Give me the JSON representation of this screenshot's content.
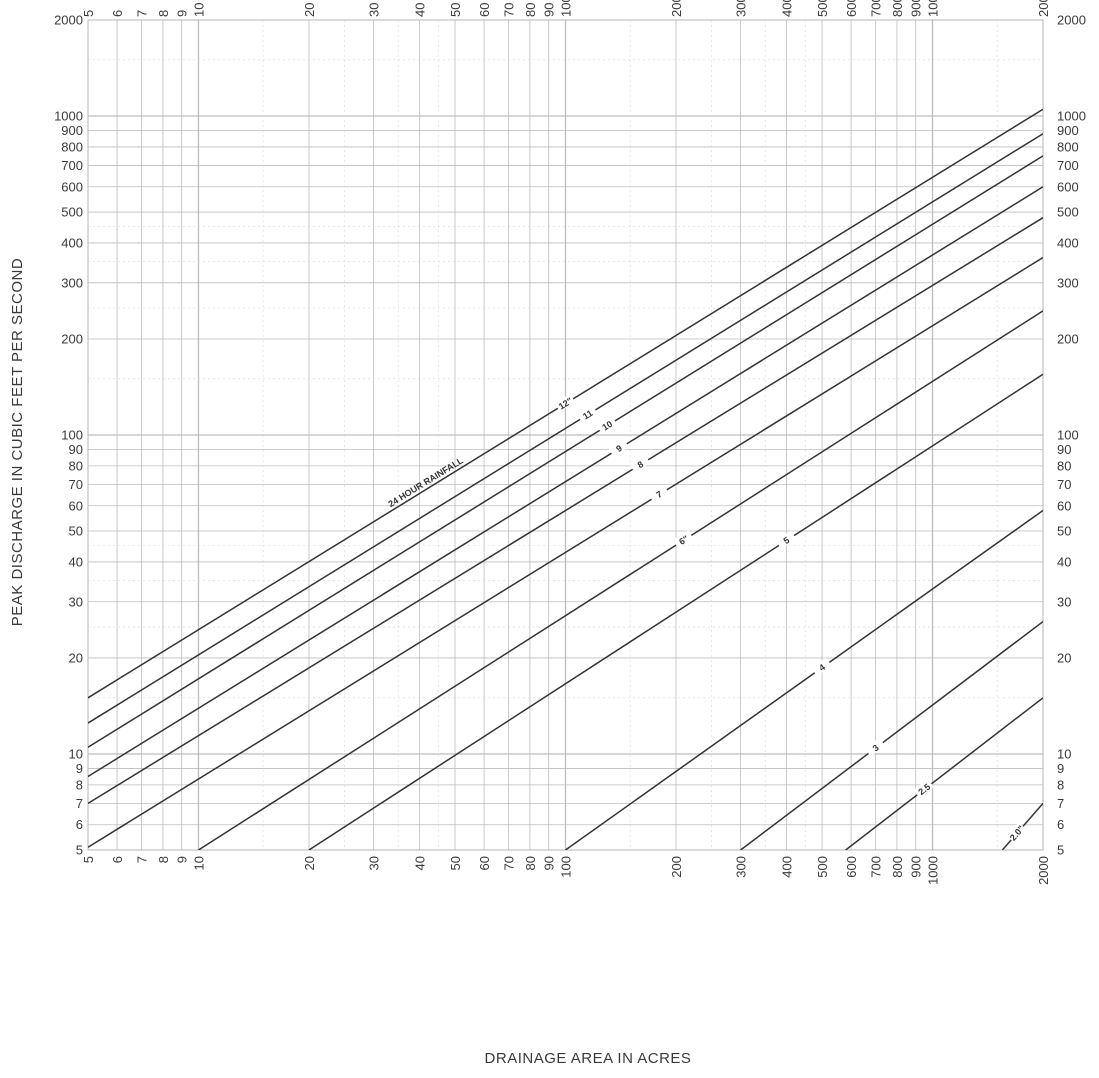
{
  "chart_data": {
    "type": "line",
    "title": "",
    "xlabel": "DRAINAGE AREA IN ACRES",
    "ylabel": "PEAK DISCHARGE IN CUBIC FEET PER SECOND",
    "x_scale": "log",
    "y_scale": "log",
    "xlim": [
      5,
      2000
    ],
    "ylim": [
      5,
      2000
    ],
    "grid": true,
    "x_ticks": [
      {
        "value": 5,
        "label": "5"
      },
      {
        "value": 6,
        "label": "6"
      },
      {
        "value": 7,
        "label": "7"
      },
      {
        "value": 8,
        "label": "8"
      },
      {
        "value": 9,
        "label": "9"
      },
      {
        "value": 10,
        "label": "10"
      },
      {
        "value": 20,
        "label": "20"
      },
      {
        "value": 30,
        "label": "30"
      },
      {
        "value": 40,
        "label": "40"
      },
      {
        "value": 50,
        "label": "50"
      },
      {
        "value": 60,
        "label": "60"
      },
      {
        "value": 70,
        "label": "70"
      },
      {
        "value": 80,
        "label": "80"
      },
      {
        "value": 90,
        "label": "90"
      },
      {
        "value": 100,
        "label": "100"
      },
      {
        "value": 200,
        "label": "200"
      },
      {
        "value": 300,
        "label": "300"
      },
      {
        "value": 400,
        "label": "400"
      },
      {
        "value": 500,
        "label": "500"
      },
      {
        "value": 600,
        "label": "600"
      },
      {
        "value": 700,
        "label": "700"
      },
      {
        "value": 800,
        "label": "800"
      },
      {
        "value": 900,
        "label": "900"
      },
      {
        "value": 1000,
        "label": "1000"
      },
      {
        "value": 2000,
        "label": "2000"
      }
    ],
    "y_ticks": [
      {
        "value": 5,
        "label": "5"
      },
      {
        "value": 6,
        "label": "6"
      },
      {
        "value": 7,
        "label": "7"
      },
      {
        "value": 8,
        "label": "8"
      },
      {
        "value": 9,
        "label": "9"
      },
      {
        "value": 10,
        "label": "10"
      },
      {
        "value": 20,
        "label": "20"
      },
      {
        "value": 30,
        "label": "30"
      },
      {
        "value": 40,
        "label": "40"
      },
      {
        "value": 50,
        "label": "50"
      },
      {
        "value": 60,
        "label": "60"
      },
      {
        "value": 70,
        "label": "70"
      },
      {
        "value": 80,
        "label": "80"
      },
      {
        "value": 90,
        "label": "90"
      },
      {
        "value": 100,
        "label": "100"
      },
      {
        "value": 200,
        "label": "200"
      },
      {
        "value": 300,
        "label": "300"
      },
      {
        "value": 400,
        "label": "400"
      },
      {
        "value": 500,
        "label": "500"
      },
      {
        "value": 600,
        "label": "600"
      },
      {
        "value": 700,
        "label": "700"
      },
      {
        "value": 800,
        "label": "800"
      },
      {
        "value": 900,
        "label": "900"
      },
      {
        "value": 1000,
        "label": "1000"
      },
      {
        "value": 2000,
        "label": "2000"
      }
    ],
    "annotation": "24 HOUR RAINFALL",
    "series": [
      {
        "name": "12\"",
        "label_at_x": 100,
        "points": [
          [
            5,
            15
          ],
          [
            2000,
            1050
          ]
        ]
      },
      {
        "name": "11",
        "label_at_x": 115,
        "points": [
          [
            5,
            12.5
          ],
          [
            2000,
            880
          ]
        ]
      },
      {
        "name": "10",
        "label_at_x": 130,
        "points": [
          [
            5,
            10.5
          ],
          [
            2000,
            750
          ]
        ]
      },
      {
        "name": "9",
        "label_at_x": 140,
        "points": [
          [
            5,
            8.5
          ],
          [
            2000,
            600
          ]
        ]
      },
      {
        "name": "8",
        "label_at_x": 160,
        "points": [
          [
            5,
            7
          ],
          [
            2000,
            480
          ]
        ]
      },
      {
        "name": "7",
        "label_at_x": 180,
        "points": [
          [
            5,
            5.1
          ],
          [
            2000,
            360
          ]
        ]
      },
      {
        "name": "6\"",
        "label_at_x": 210,
        "points": [
          [
            10,
            5
          ],
          [
            2000,
            245
          ]
        ]
      },
      {
        "name": "5",
        "label_at_x": 400,
        "points": [
          [
            20,
            5
          ],
          [
            2000,
            155
          ]
        ]
      },
      {
        "name": "4",
        "label_at_x": 500,
        "points": [
          [
            100,
            5
          ],
          [
            2000,
            58
          ]
        ]
      },
      {
        "name": "3",
        "label_at_x": 700,
        "points": [
          [
            300,
            5
          ],
          [
            2000,
            26
          ]
        ]
      },
      {
        "name": "2.5",
        "label_at_x": 950,
        "points": [
          [
            580,
            5
          ],
          [
            2000,
            15
          ]
        ]
      },
      {
        "name": "2.0\"",
        "label_at_x": 1700,
        "points": [
          [
            1550,
            5
          ],
          [
            2000,
            7
          ]
        ]
      }
    ],
    "colors": {
      "grid": "#bdbdbd",
      "curve": "#333333",
      "text": "#3a3a3a"
    }
  }
}
